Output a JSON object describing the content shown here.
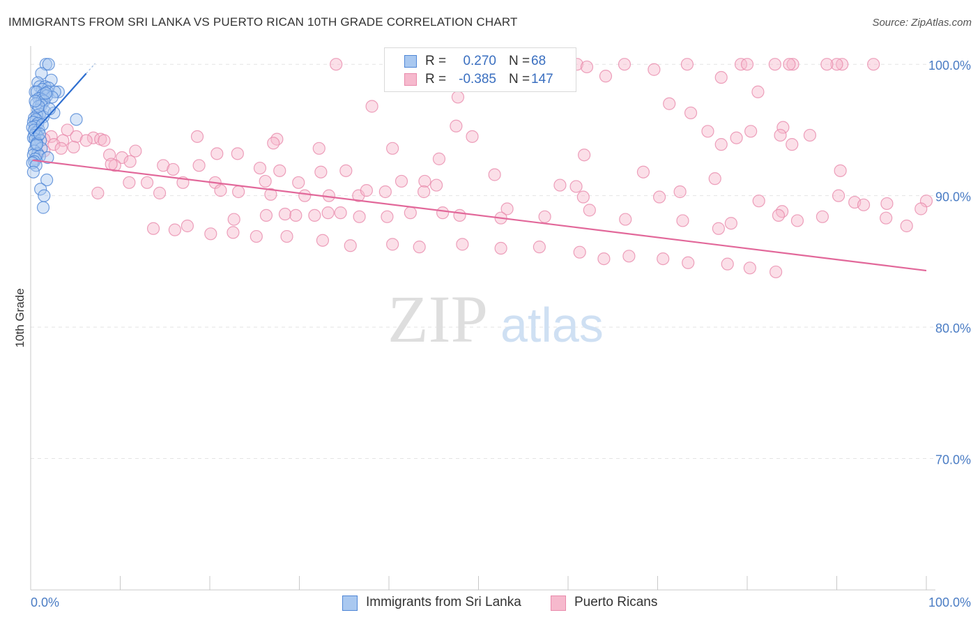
{
  "header": {
    "title": "IMMIGRANTS FROM SRI LANKA VS PUERTO RICAN 10TH GRADE CORRELATION CHART",
    "source": "Source: ZipAtlas.com"
  },
  "watermark": {
    "zip": "ZIP",
    "atlas": "atlas"
  },
  "legend": {
    "series": [
      {
        "r_label": "R =",
        "r_value": "0.270",
        "n_label": "N =",
        "n_value": "68"
      },
      {
        "r_label": "R =",
        "r_value": "-0.385",
        "n_label": "N =",
        "n_value": "147"
      }
    ]
  },
  "bottom_legend": {
    "items": [
      {
        "label": "Immigrants from Sri Lanka"
      },
      {
        "label": "Puerto Ricans"
      }
    ]
  },
  "colors": {
    "blue_fill": "#a9c8f0",
    "blue_stroke": "#4f86d6",
    "blue_line": "#2f6fd0",
    "pink_fill": "#f6b9cd",
    "pink_stroke": "#e98aab",
    "pink_line": "#e2689a",
    "tick_text": "#4a7cc4"
  },
  "chart_data": {
    "type": "scatter",
    "title": "IMMIGRANTS FROM SRI LANKA VS PUERTO RICAN 10TH GRADE CORRELATION CHART",
    "xlabel": "",
    "ylabel": "10th Grade",
    "xlim": [
      0,
      100
    ],
    "ylim": [
      60,
      100.7
    ],
    "x_tick_labels": [
      "0.0%",
      "100.0%"
    ],
    "y_ticks": [
      {
        "value": 100,
        "label": "100.0%"
      },
      {
        "value": 90,
        "label": "90.0%"
      },
      {
        "value": 80,
        "label": "80.0%"
      },
      {
        "value": 70,
        "label": "70.0%"
      }
    ],
    "grid": true,
    "series": [
      {
        "name": "Immigrants from Sri Lanka",
        "R": 0.27,
        "N": 68,
        "trend": {
          "x": [
            0.2,
            6.2
          ],
          "y": [
            94.7,
            99.3
          ]
        },
        "points": [
          [
            1.7,
            100
          ],
          [
            2.0,
            100
          ],
          [
            1.2,
            99.3
          ],
          [
            2.3,
            98.8
          ],
          [
            0.8,
            98.6
          ],
          [
            1.0,
            98.3
          ],
          [
            1.6,
            98.3
          ],
          [
            2.0,
            98.2
          ],
          [
            1.3,
            98.1
          ],
          [
            0.5,
            97.9
          ],
          [
            0.7,
            97.9
          ],
          [
            1.9,
            97.9
          ],
          [
            3.1,
            97.9
          ],
          [
            2.7,
            97.9
          ],
          [
            1.4,
            97.7
          ],
          [
            1.8,
            97.6
          ],
          [
            2.4,
            97.5
          ],
          [
            1.1,
            97.4
          ],
          [
            0.9,
            97.4
          ],
          [
            1.3,
            97.3
          ],
          [
            1.5,
            97.2
          ],
          [
            0.6,
            97.0
          ],
          [
            1.2,
            96.9
          ],
          [
            0.8,
            96.5
          ],
          [
            1.6,
            96.4
          ],
          [
            2.6,
            96.3
          ],
          [
            1.0,
            96.2
          ],
          [
            0.7,
            96.1
          ],
          [
            1.4,
            96.0
          ],
          [
            0.4,
            95.9
          ],
          [
            0.6,
            95.8
          ],
          [
            5.1,
            95.8
          ],
          [
            0.3,
            95.6
          ],
          [
            0.8,
            95.5
          ],
          [
            0.5,
            95.3
          ],
          [
            0.2,
            95.2
          ],
          [
            0.9,
            95.0
          ],
          [
            0.6,
            94.8
          ],
          [
            0.4,
            94.6
          ],
          [
            0.8,
            94.5
          ],
          [
            0.3,
            94.4
          ],
          [
            0.5,
            94.3
          ],
          [
            1.1,
            94.2
          ],
          [
            0.7,
            94.0
          ],
          [
            0.6,
            93.8
          ],
          [
            1.2,
            93.6
          ],
          [
            0.4,
            93.4
          ],
          [
            0.8,
            93.2
          ],
          [
            0.3,
            93.1
          ],
          [
            1.0,
            93.0
          ],
          [
            1.9,
            92.9
          ],
          [
            0.5,
            92.8
          ],
          [
            0.4,
            92.6
          ],
          [
            0.2,
            92.5
          ],
          [
            0.6,
            92.3
          ],
          [
            0.3,
            91.8
          ],
          [
            1.8,
            91.2
          ],
          [
            1.1,
            90.5
          ],
          [
            1.5,
            90.0
          ],
          [
            1.4,
            89.1
          ],
          [
            0.9,
            96.8
          ],
          [
            1.7,
            97.8
          ],
          [
            0.4,
            95.0
          ],
          [
            0.7,
            93.9
          ],
          [
            1.3,
            95.4
          ],
          [
            2.1,
            96.6
          ],
          [
            0.5,
            97.2
          ],
          [
            1.0,
            94.7
          ]
        ]
      },
      {
        "name": "Puerto Ricans",
        "R": -0.385,
        "N": 147,
        "trend": {
          "x": [
            0.2,
            100
          ],
          "y": [
            92.7,
            84.3
          ]
        },
        "points": [
          [
            34.1,
            100
          ],
          [
            60.0,
            100
          ],
          [
            61.0,
            100
          ],
          [
            66.3,
            100
          ],
          [
            69.6,
            99.6
          ],
          [
            62.1,
            99.8
          ],
          [
            64.2,
            99.1
          ],
          [
            79.3,
            100
          ],
          [
            80.0,
            100
          ],
          [
            83.1,
            100
          ],
          [
            85.1,
            100
          ],
          [
            84.7,
            100
          ],
          [
            90.6,
            100
          ],
          [
            90.0,
            100
          ],
          [
            88.9,
            100
          ],
          [
            94.1,
            100
          ],
          [
            73.3,
            100
          ],
          [
            77.1,
            99.0
          ],
          [
            73.7,
            96.3
          ],
          [
            38.1,
            96.8
          ],
          [
            81.2,
            97.9
          ],
          [
            47.7,
            97.5
          ],
          [
            71.3,
            97.0
          ],
          [
            47.5,
            95.3
          ],
          [
            84.0,
            95.2
          ],
          [
            83.7,
            94.6
          ],
          [
            75.6,
            94.9
          ],
          [
            78.8,
            94.4
          ],
          [
            80.4,
            94.9
          ],
          [
            49.3,
            94.5
          ],
          [
            87.0,
            94.6
          ],
          [
            18.6,
            94.5
          ],
          [
            27.5,
            94.3
          ],
          [
            27.1,
            94.0
          ],
          [
            4.1,
            95.0
          ],
          [
            5.1,
            94.5
          ],
          [
            7.0,
            94.4
          ],
          [
            6.2,
            94.2
          ],
          [
            3.6,
            94.2
          ],
          [
            2.3,
            94.5
          ],
          [
            1.5,
            94.3
          ],
          [
            7.8,
            94.3
          ],
          [
            8.2,
            94.2
          ],
          [
            2.6,
            93.9
          ],
          [
            3.4,
            93.6
          ],
          [
            4.8,
            93.7
          ],
          [
            1.5,
            93.4
          ],
          [
            8.8,
            93.1
          ],
          [
            11.7,
            93.4
          ],
          [
            20.8,
            93.2
          ],
          [
            23.1,
            93.2
          ],
          [
            32.2,
            93.6
          ],
          [
            40.4,
            93.6
          ],
          [
            45.6,
            92.8
          ],
          [
            61.8,
            93.1
          ],
          [
            77.1,
            93.9
          ],
          [
            85.0,
            93.9
          ],
          [
            10.2,
            92.9
          ],
          [
            11.1,
            92.6
          ],
          [
            14.8,
            92.3
          ],
          [
            15.9,
            92.0
          ],
          [
            9.4,
            92.3
          ],
          [
            9.0,
            92.4
          ],
          [
            18.8,
            92.3
          ],
          [
            25.6,
            92.1
          ],
          [
            32.4,
            91.8
          ],
          [
            27.8,
            91.9
          ],
          [
            35.2,
            91.9
          ],
          [
            51.8,
            91.6
          ],
          [
            68.4,
            91.8
          ],
          [
            76.4,
            91.3
          ],
          [
            90.4,
            91.9
          ],
          [
            11.0,
            91.0
          ],
          [
            13.0,
            91.0
          ],
          [
            17.0,
            91.0
          ],
          [
            20.6,
            91.0
          ],
          [
            26.2,
            91.1
          ],
          [
            29.9,
            91.0
          ],
          [
            41.4,
            91.1
          ],
          [
            44.0,
            91.1
          ],
          [
            45.3,
            90.8
          ],
          [
            59.1,
            90.8
          ],
          [
            60.9,
            90.7
          ],
          [
            7.5,
            90.2
          ],
          [
            14.4,
            90.2
          ],
          [
            21.2,
            90.4
          ],
          [
            23.2,
            90.3
          ],
          [
            26.8,
            90.1
          ],
          [
            30.6,
            90.0
          ],
          [
            33.3,
            90.0
          ],
          [
            36.6,
            90.0
          ],
          [
            37.5,
            90.4
          ],
          [
            39.6,
            90.3
          ],
          [
            43.9,
            90.3
          ],
          [
            53.2,
            89.0
          ],
          [
            61.7,
            89.9
          ],
          [
            70.2,
            89.9
          ],
          [
            72.5,
            90.3
          ],
          [
            81.3,
            89.6
          ],
          [
            83.9,
            88.8
          ],
          [
            90.2,
            90.0
          ],
          [
            92.0,
            89.5
          ],
          [
            93.0,
            89.3
          ],
          [
            95.6,
            89.4
          ],
          [
            100,
            89.6
          ],
          [
            99.4,
            89.0
          ],
          [
            22.7,
            88.2
          ],
          [
            26.3,
            88.5
          ],
          [
            28.4,
            88.6
          ],
          [
            29.6,
            88.5
          ],
          [
            31.7,
            88.5
          ],
          [
            33.2,
            88.7
          ],
          [
            34.6,
            88.7
          ],
          [
            36.7,
            88.4
          ],
          [
            39.8,
            88.4
          ],
          [
            42.4,
            88.7
          ],
          [
            46.0,
            88.7
          ],
          [
            47.9,
            88.5
          ],
          [
            52.5,
            88.3
          ],
          [
            57.4,
            88.4
          ],
          [
            62.4,
            88.9
          ],
          [
            66.4,
            88.2
          ],
          [
            72.8,
            88.1
          ],
          [
            76.8,
            87.5
          ],
          [
            78.2,
            87.9
          ],
          [
            83.5,
            88.5
          ],
          [
            85.6,
            88.1
          ],
          [
            88.4,
            88.4
          ],
          [
            95.5,
            88.3
          ],
          [
            97.8,
            87.7
          ],
          [
            13.7,
            87.5
          ],
          [
            16.1,
            87.4
          ],
          [
            17.5,
            87.7
          ],
          [
            20.1,
            87.1
          ],
          [
            22.6,
            87.2
          ],
          [
            25.2,
            86.9
          ],
          [
            28.6,
            86.9
          ],
          [
            32.6,
            86.6
          ],
          [
            35.7,
            86.2
          ],
          [
            40.4,
            86.3
          ],
          [
            43.4,
            86.1
          ],
          [
            48.2,
            86.3
          ],
          [
            52.5,
            86.0
          ],
          [
            56.8,
            86.1
          ],
          [
            61.3,
            85.7
          ],
          [
            64.0,
            85.2
          ],
          [
            66.8,
            85.4
          ],
          [
            70.6,
            85.2
          ],
          [
            73.4,
            84.9
          ],
          [
            77.8,
            84.8
          ],
          [
            80.3,
            84.5
          ],
          [
            83.2,
            84.2
          ]
        ]
      }
    ]
  }
}
